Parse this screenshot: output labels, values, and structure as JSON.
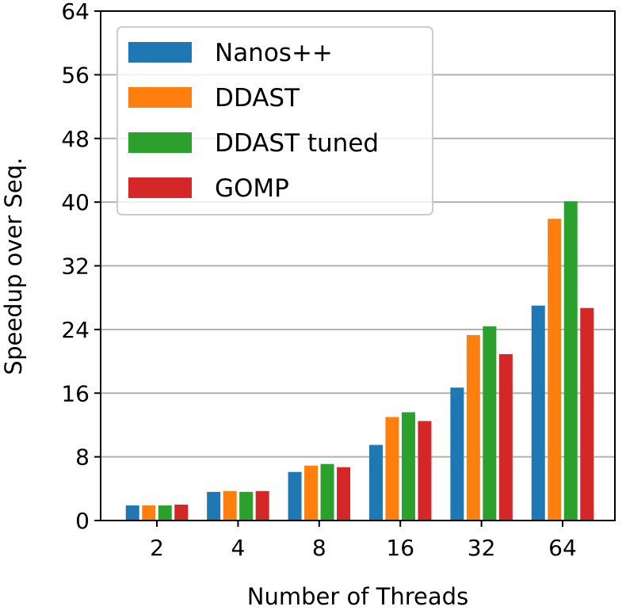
{
  "chart_data": {
    "type": "bar",
    "categories": [
      "2",
      "4",
      "8",
      "16",
      "32",
      "64"
    ],
    "series": [
      {
        "name": "Nanos++",
        "color": "#1f77b4",
        "values": [
          1.9,
          3.6,
          6.1,
          9.5,
          16.7,
          27.0
        ]
      },
      {
        "name": "DDAST",
        "color": "#ff7f0e",
        "values": [
          1.9,
          3.7,
          6.9,
          13.0,
          23.3,
          37.9
        ]
      },
      {
        "name": "DDAST tuned",
        "color": "#2ca02c",
        "values": [
          1.9,
          3.6,
          7.1,
          13.6,
          24.4,
          40.1
        ]
      },
      {
        "name": "GOMP",
        "color": "#d62728",
        "values": [
          2.0,
          3.7,
          6.7,
          12.5,
          20.9,
          26.7
        ]
      }
    ],
    "xlabel": "Number of Threads",
    "ylabel": "Speedup over Seq.",
    "ylim": [
      0,
      64
    ],
    "yticks": [
      0,
      8,
      16,
      24,
      32,
      40,
      48,
      56,
      64
    ],
    "grid": "horizontal",
    "legend_position": "top-left"
  }
}
